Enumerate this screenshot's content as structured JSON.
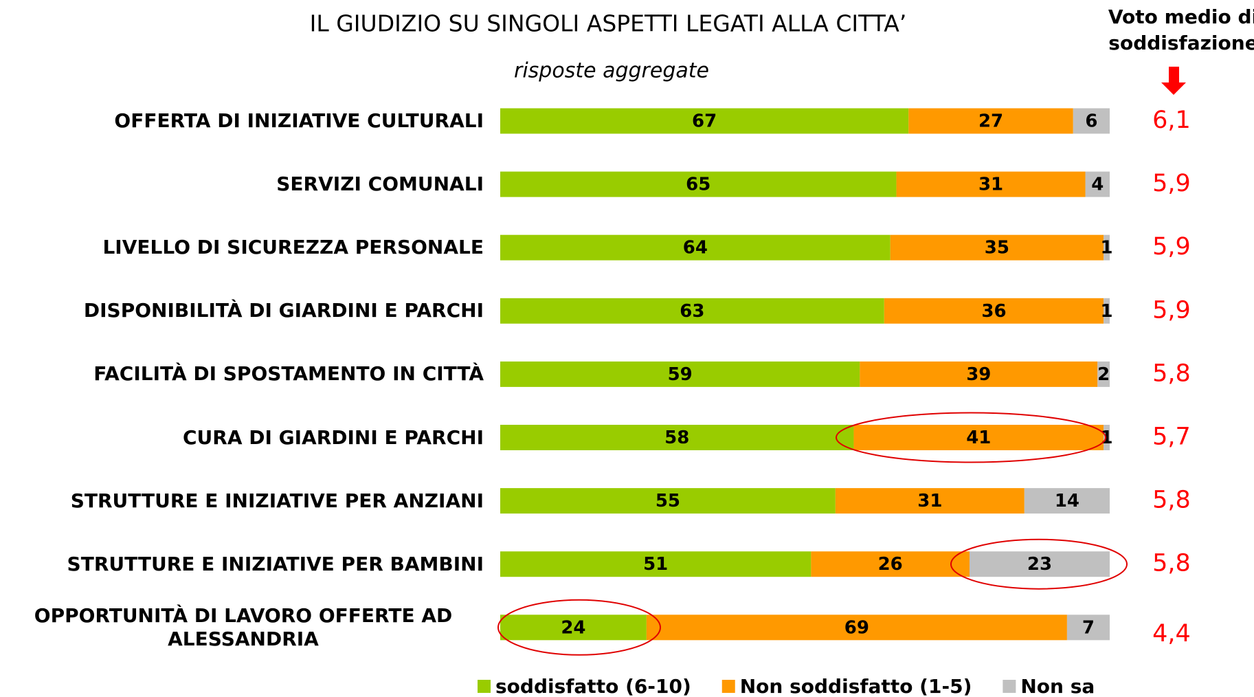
{
  "chart_data": {
    "type": "stacked-bar-horizontal",
    "title": "IL GIUDIZIO SU SINGOLI ASPETTI LEGATI ALLA CITTA’",
    "subtitle": "risposte aggregate",
    "categories": [
      "OFFERTA DI INIZIATIVE CULTURALI",
      "SERVIZI COMUNALI",
      "LIVELLO DI SICUREZZA PERSONALE",
      "DISPONIBILITÀ DI GIARDINI E PARCHI",
      "FACILITÀ DI SPOSTAMENTO IN CITTÀ",
      "CURA DI GIARDINI E PARCHI",
      "STRUTTURE E INIZIATIVE PER ANZIANI",
      "STRUTTURE E INIZIATIVE PER BAMBINI",
      "OPPORTUNITÀ DI LAVORO OFFERTE AD ALESSANDRIA"
    ],
    "series": [
      {
        "name": "soddisfatto (6-10)",
        "color": "#99cc00",
        "values": [
          67,
          65,
          64,
          63,
          59,
          58,
          55,
          51,
          24
        ]
      },
      {
        "name": "Non soddisfatto (1-5)",
        "color": "#ff9900",
        "values": [
          27,
          31,
          35,
          36,
          39,
          41,
          31,
          26,
          69
        ]
      },
      {
        "name": "Non sa",
        "color": "#c0c0c0",
        "values": [
          6,
          4,
          1,
          1,
          2,
          1,
          14,
          23,
          7
        ]
      }
    ],
    "xlim": [
      0,
      100
    ],
    "score": {
      "title": [
        "Voto medio di",
        "soddisfazione"
      ],
      "color": "#ff0000",
      "values": [
        6.1,
        5.9,
        5.9,
        5.9,
        5.8,
        5.7,
        5.8,
        5.8,
        4.4
      ],
      "value_labels": [
        "6,1",
        "5,9",
        "5,9",
        "5,9",
        "5,8",
        "5,7",
        "5,8",
        "5,8",
        "4,4"
      ]
    }
  }
}
